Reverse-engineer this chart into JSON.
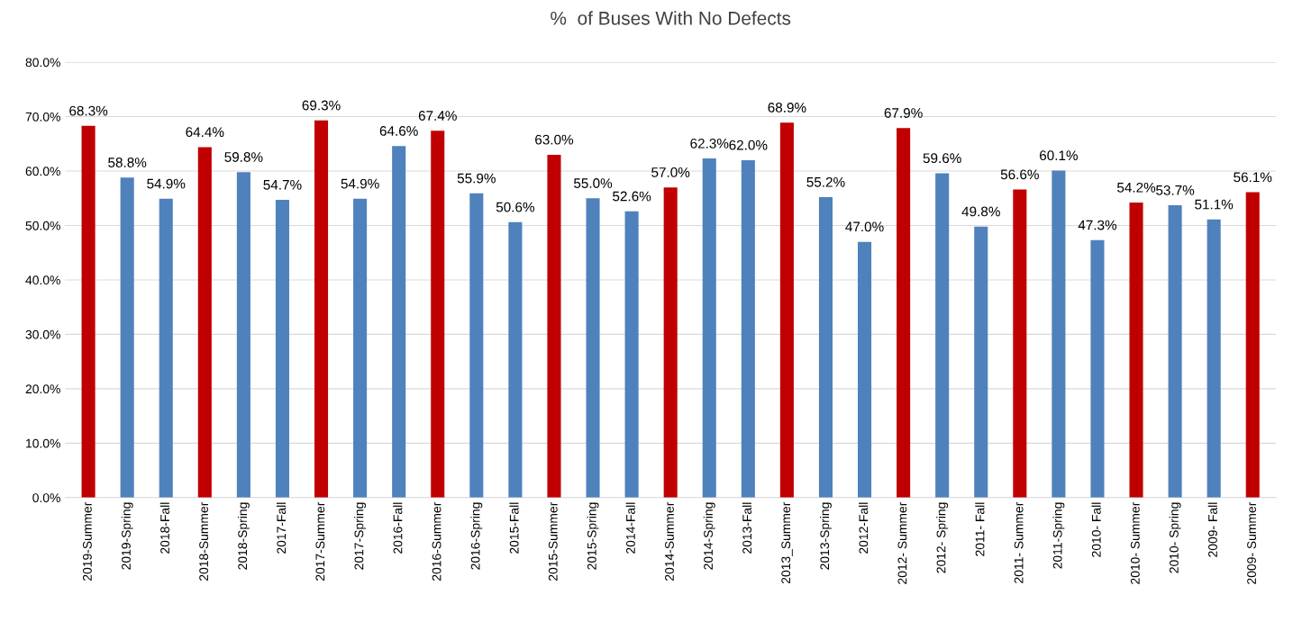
{
  "chart_data": {
    "type": "bar",
    "title": "%  of Buses With No Defects",
    "categories": [
      "2019-Summer",
      "2019-Spring",
      "2018-Fall",
      "2018-Summer",
      "2018-Spring",
      "2017-Fall",
      "2017-Summer",
      "2017-Spring",
      "2016-Fall",
      "2016-Summer",
      "2016-Spring",
      "2015-Fall",
      "2015-Summer",
      "2015-Spring",
      "2014-Fall",
      "2014-Summer",
      "2014-Spring",
      "2013-Fall",
      "2013_Summer",
      "2013-Spring",
      "2012-Fall",
      "2012- Summer",
      "2012- Spring",
      "2011- Fall",
      "2011- Summer",
      "2011-Spring",
      "2010- Fall",
      "2010- Summer",
      "2010- Spring",
      "2009- Fall",
      "2009- Summer"
    ],
    "values": [
      68.3,
      58.8,
      54.9,
      64.4,
      59.8,
      54.7,
      69.3,
      54.9,
      64.6,
      67.4,
      55.9,
      50.6,
      63.0,
      55.0,
      52.6,
      57.0,
      62.3,
      62.0,
      68.9,
      55.2,
      47.0,
      67.9,
      59.6,
      49.8,
      56.6,
      60.1,
      47.3,
      54.2,
      53.7,
      51.1,
      56.1
    ],
    "value_labels": [
      "68.3%",
      "58.8%",
      "54.9%",
      "64.4%",
      "59.8%",
      "54.7%",
      "69.3%",
      "54.9%",
      "64.6%",
      "67.4%",
      "55.9%",
      "50.6%",
      "63.0%",
      "55.0%",
      "52.6%",
      "57.0%",
      "62.3%",
      "62.0%",
      "68.9%",
      "55.2%",
      "47.0%",
      "67.9%",
      "59.6%",
      "49.8%",
      "56.6%",
      "60.1%",
      "47.3%",
      "54.2%",
      "53.7%",
      "51.1%",
      "56.1%"
    ],
    "colors": [
      "#c00000",
      "#4f81bd",
      "#4f81bd",
      "#c00000",
      "#4f81bd",
      "#4f81bd",
      "#c00000",
      "#4f81bd",
      "#4f81bd",
      "#c00000",
      "#4f81bd",
      "#4f81bd",
      "#c00000",
      "#4f81bd",
      "#4f81bd",
      "#c00000",
      "#4f81bd",
      "#4f81bd",
      "#c00000",
      "#4f81bd",
      "#4f81bd",
      "#c00000",
      "#4f81bd",
      "#4f81bd",
      "#c00000",
      "#4f81bd",
      "#4f81bd",
      "#c00000",
      "#4f81bd",
      "#4f81bd",
      "#c00000"
    ],
    "ylim": [
      0,
      80
    ],
    "yticks": [
      {
        "value": 0,
        "label": "0.0%"
      },
      {
        "value": 10,
        "label": "10.0%"
      },
      {
        "value": 20,
        "label": "20.0%"
      },
      {
        "value": 30,
        "label": "30.0%"
      },
      {
        "value": 40,
        "label": "40.0%"
      },
      {
        "value": 50,
        "label": "50.0%"
      },
      {
        "value": 60,
        "label": "60.0%"
      },
      {
        "value": 70,
        "label": "70.0%"
      },
      {
        "value": 80,
        "label": "80.0%"
      }
    ],
    "grid": "y",
    "legend": false
  }
}
